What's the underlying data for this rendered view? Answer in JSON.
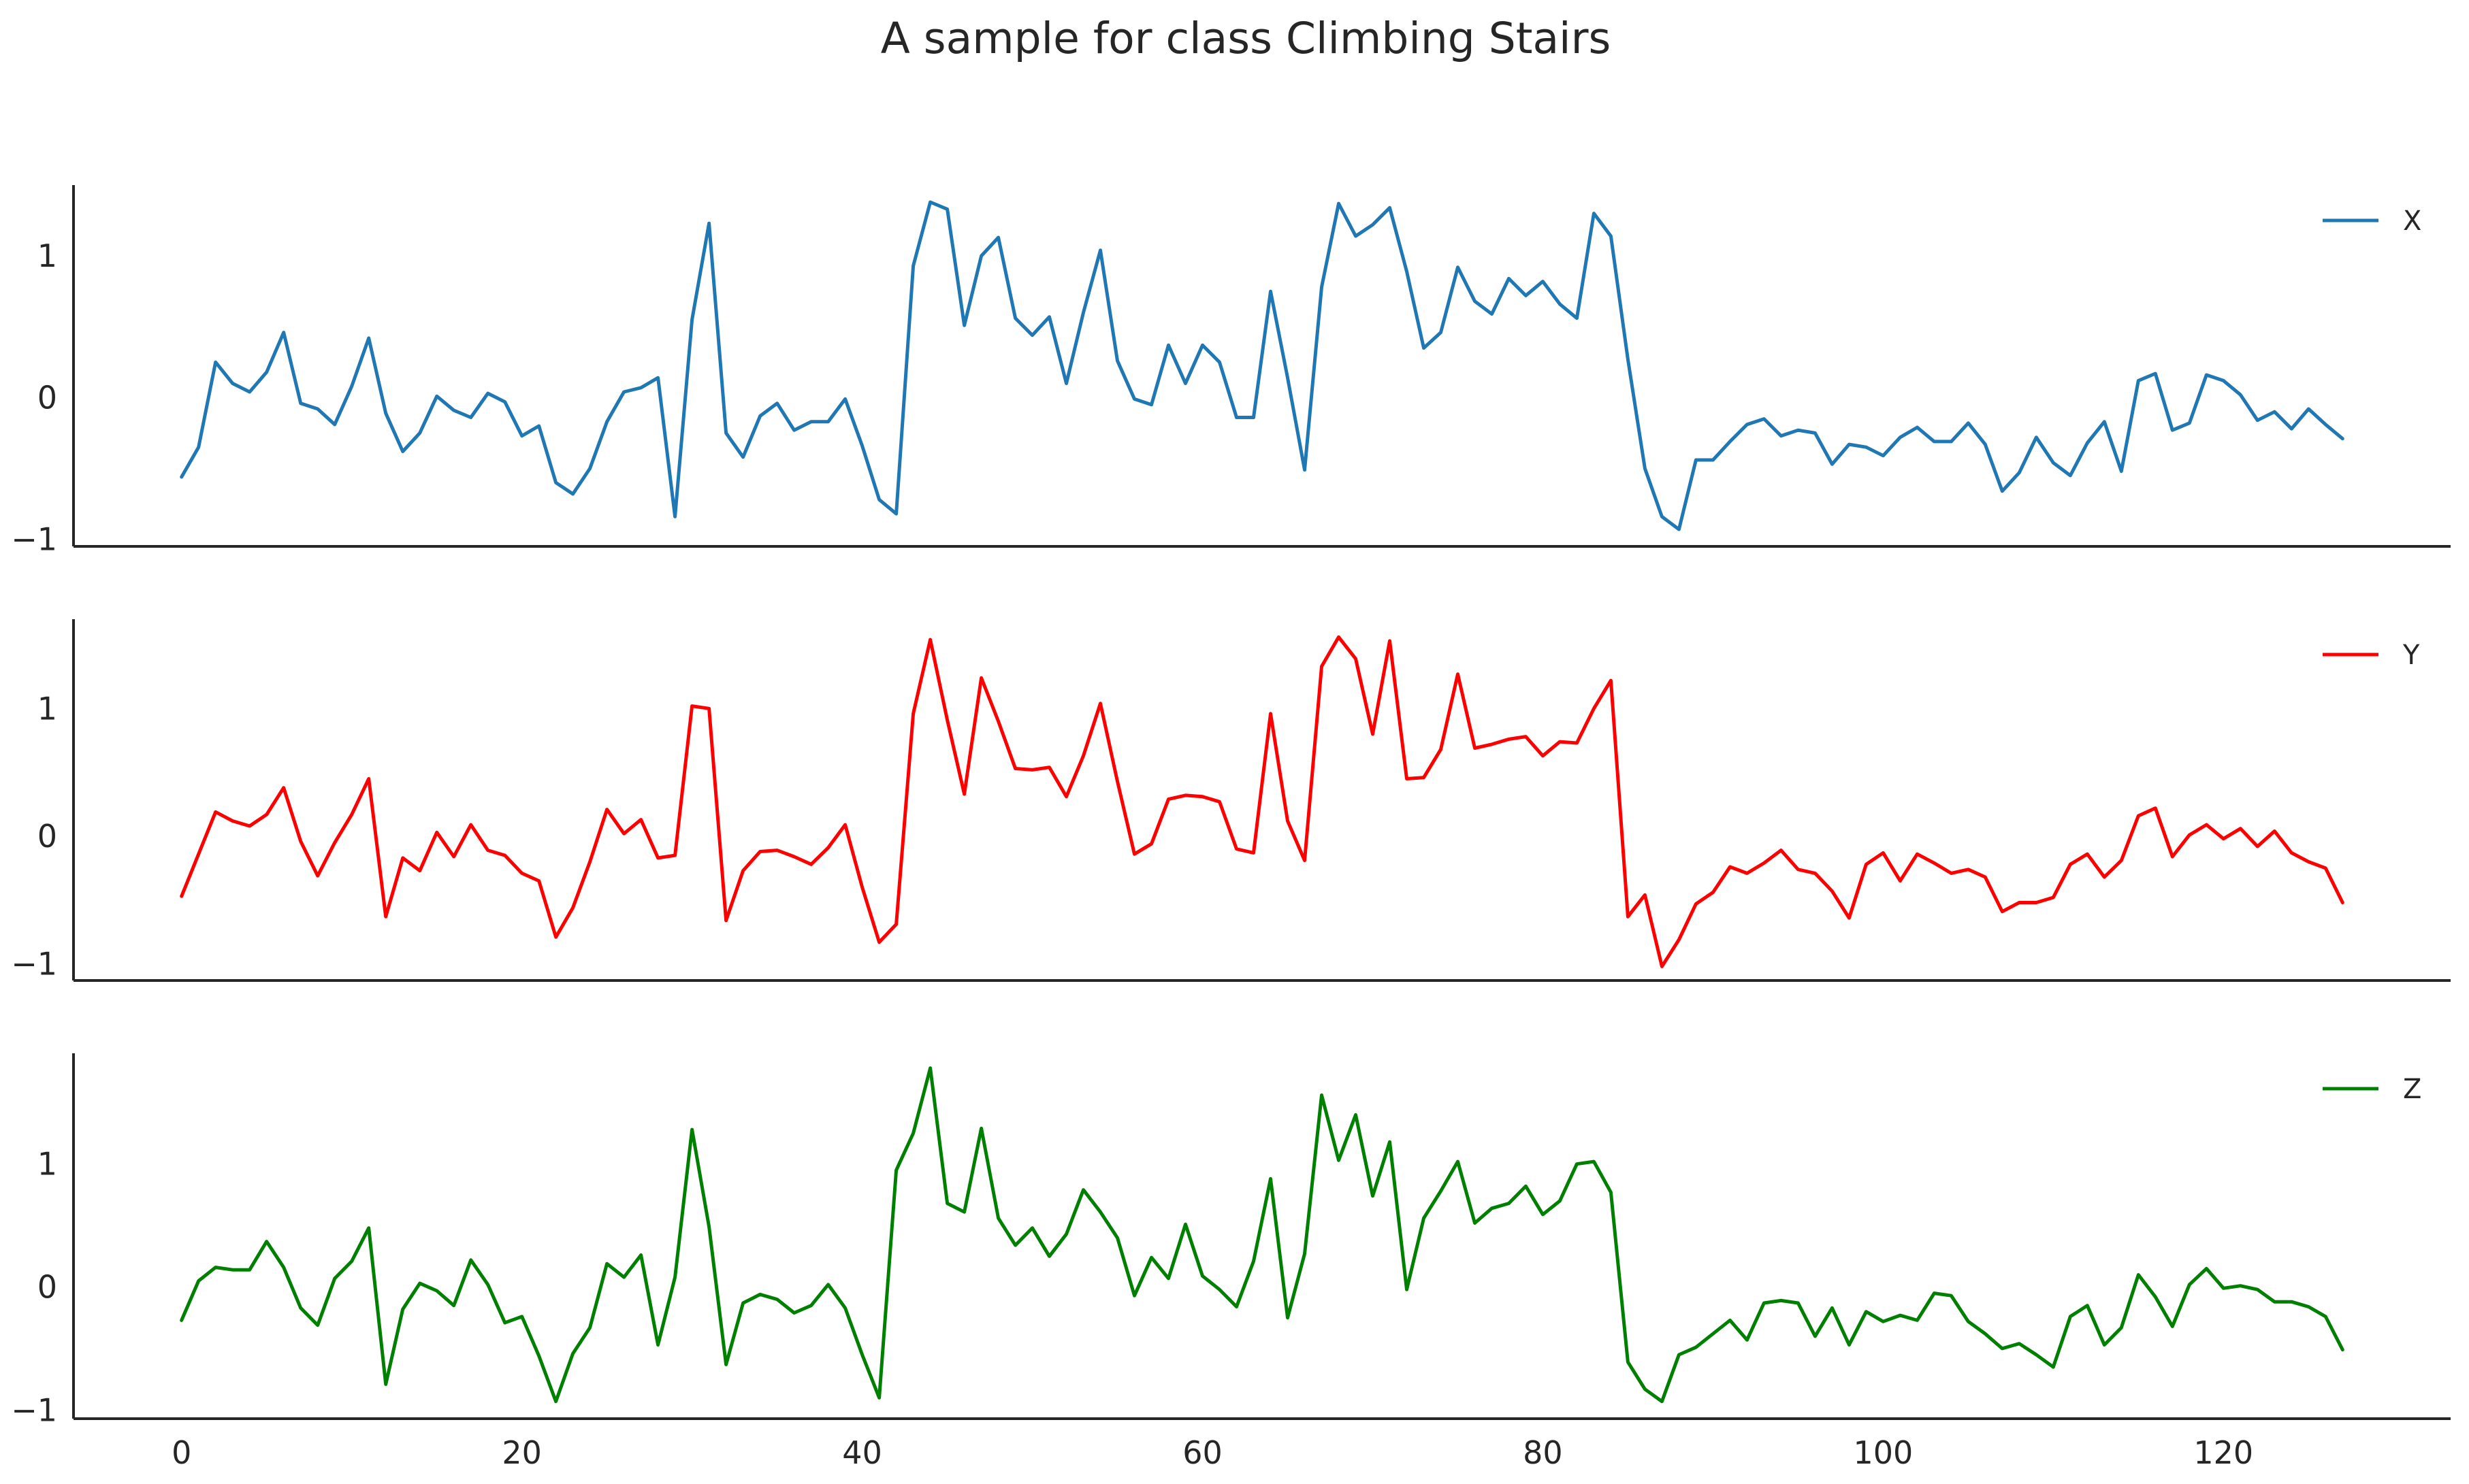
{
  "figure": {
    "title": "A sample for class Climbing Stairs"
  },
  "chart_data": [
    {
      "type": "line",
      "title": "",
      "xlabel": "",
      "ylabel": "",
      "xlim": [
        -6.35,
        133.35
      ],
      "ylim": [
        -1.05,
        1.5
      ],
      "yticks": [
        -1,
        0,
        1
      ],
      "ytick_labels": [
        "−1",
        "0",
        "1"
      ],
      "xticks": [],
      "xtick_labels": [],
      "grid": false,
      "legend_position": "top-right",
      "series": [
        {
          "name": "X",
          "color": "#1f77b4",
          "x_start": 0,
          "values": [
            -0.56,
            -0.35,
            0.25,
            0.1,
            0.04,
            0.18,
            0.46,
            -0.04,
            -0.08,
            -0.19,
            0.08,
            0.42,
            -0.11,
            -0.38,
            -0.25,
            0.01,
            -0.09,
            -0.14,
            0.03,
            -0.03,
            -0.27,
            -0.2,
            -0.6,
            -0.68,
            -0.5,
            -0.17,
            0.04,
            0.07,
            0.14,
            -0.84,
            0.55,
            1.23,
            -0.25,
            -0.42,
            -0.13,
            -0.04,
            -0.23,
            -0.17,
            -0.17,
            -0.01,
            -0.34,
            -0.72,
            -0.82,
            0.93,
            1.38,
            1.33,
            0.51,
            1.0,
            1.13,
            0.56,
            0.44,
            0.57,
            0.1,
            0.6,
            1.04,
            0.26,
            -0.01,
            -0.05,
            0.37,
            0.1,
            0.37,
            0.25,
            -0.14,
            -0.14,
            0.75,
            0.14,
            -0.51,
            0.78,
            1.37,
            1.14,
            1.22,
            1.34,
            0.89,
            0.35,
            0.46,
            0.92,
            0.68,
            0.59,
            0.84,
            0.72,
            0.82,
            0.66,
            0.56,
            1.3,
            1.14,
            0.27,
            -0.5,
            -0.84,
            -0.93,
            -0.44,
            -0.44,
            -0.31,
            -0.19,
            -0.15,
            -0.27,
            -0.23,
            -0.25,
            -0.47,
            -0.33,
            -0.35,
            -0.41,
            -0.28,
            -0.21,
            -0.31,
            -0.31,
            -0.18,
            -0.33,
            -0.66,
            -0.53,
            -0.28,
            -0.46,
            -0.55,
            -0.32,
            -0.17,
            -0.52,
            0.12,
            0.17,
            -0.23,
            -0.18,
            0.16,
            0.12,
            0.02,
            -0.16,
            -0.1,
            -0.22,
            -0.08,
            -0.19,
            -0.29
          ]
        }
      ]
    },
    {
      "type": "line",
      "title": "",
      "xlabel": "",
      "ylabel": "",
      "xlim": [
        -6.35,
        133.35
      ],
      "ylim": [
        -1.13,
        1.7
      ],
      "yticks": [
        -1,
        0,
        1
      ],
      "ytick_labels": [
        "−1",
        "0",
        "1"
      ],
      "xticks": [],
      "xtick_labels": [],
      "grid": false,
      "legend_position": "top-right",
      "series": [
        {
          "name": "Y",
          "color": "#ff0000",
          "x_start": 0,
          "values": [
            -0.47,
            -0.14,
            0.19,
            0.12,
            0.08,
            0.17,
            0.38,
            -0.04,
            -0.31,
            -0.05,
            0.17,
            0.45,
            -0.63,
            -0.17,
            -0.27,
            0.03,
            -0.16,
            0.09,
            -0.11,
            -0.15,
            -0.29,
            -0.35,
            -0.79,
            -0.56,
            -0.2,
            0.21,
            0.02,
            0.13,
            -0.17,
            -0.15,
            1.02,
            1.0,
            -0.66,
            -0.27,
            -0.12,
            -0.11,
            -0.16,
            -0.22,
            -0.09,
            0.09,
            -0.4,
            -0.83,
            -0.69,
            0.96,
            1.54,
            0.91,
            0.33,
            1.24,
            0.9,
            0.53,
            0.52,
            0.54,
            0.31,
            0.63,
            1.04,
            0.43,
            -0.14,
            -0.06,
            0.29,
            0.32,
            0.31,
            0.27,
            -0.1,
            -0.13,
            0.96,
            0.12,
            -0.19,
            1.33,
            1.56,
            1.39,
            0.8,
            1.53,
            0.45,
            0.46,
            0.68,
            1.27,
            0.69,
            0.72,
            0.76,
            0.78,
            0.63,
            0.74,
            0.73,
            1.0,
            1.22,
            -0.63,
            -0.46,
            -1.02,
            -0.81,
            -0.53,
            -0.44,
            -0.24,
            -0.29,
            -0.21,
            -0.11,
            -0.26,
            -0.29,
            -0.43,
            -0.64,
            -0.22,
            -0.13,
            -0.35,
            -0.14,
            -0.21,
            -0.29,
            -0.26,
            -0.32,
            -0.59,
            -0.52,
            -0.52,
            -0.48,
            -0.22,
            -0.14,
            -0.32,
            -0.19,
            0.16,
            0.22,
            -0.16,
            0.01,
            0.09,
            -0.02,
            0.06,
            -0.08,
            0.04,
            -0.13,
            -0.2,
            -0.25,
            -0.52
          ]
        }
      ]
    },
    {
      "type": "line",
      "title": "",
      "xlabel": "",
      "ylabel": "",
      "xlim": [
        -6.35,
        133.35
      ],
      "ylim": [
        -1.07,
        1.9
      ],
      "yticks": [
        -1,
        0,
        1
      ],
      "ytick_labels": [
        "−1",
        "0",
        "1"
      ],
      "xticks": [
        0,
        20,
        40,
        60,
        80,
        100,
        120
      ],
      "xtick_labels": [
        "0",
        "20",
        "40",
        "60",
        "80",
        "100",
        "120"
      ],
      "grid": false,
      "legend_position": "top-right",
      "series": [
        {
          "name": "Z",
          "color": "#008000",
          "x_start": 0,
          "values": [
            -0.27,
            0.05,
            0.16,
            0.14,
            0.14,
            0.37,
            0.16,
            -0.17,
            -0.31,
            0.07,
            0.21,
            0.48,
            -0.79,
            -0.18,
            0.03,
            -0.03,
            -0.15,
            0.22,
            0.02,
            -0.29,
            -0.24,
            -0.56,
            -0.93,
            -0.54,
            -0.33,
            0.19,
            0.08,
            0.26,
            -0.47,
            0.08,
            1.28,
            0.49,
            -0.63,
            -0.13,
            -0.06,
            -0.1,
            -0.21,
            -0.15,
            0.02,
            -0.17,
            -0.55,
            -0.9,
            0.95,
            1.25,
            1.78,
            0.68,
            0.61,
            1.29,
            0.56,
            0.34,
            0.48,
            0.25,
            0.43,
            0.79,
            0.61,
            0.4,
            -0.07,
            0.24,
            0.07,
            0.51,
            0.09,
            -0.02,
            -0.16,
            0.21,
            0.88,
            -0.25,
            0.27,
            1.56,
            1.03,
            1.4,
            0.74,
            1.18,
            -0.02,
            0.56,
            0.78,
            1.02,
            0.52,
            0.64,
            0.68,
            0.82,
            0.59,
            0.7,
            1.0,
            1.02,
            0.77,
            -0.61,
            -0.83,
            -0.93,
            -0.55,
            -0.49,
            -0.38,
            -0.27,
            -0.43,
            -0.13,
            -0.11,
            -0.13,
            -0.4,
            -0.17,
            -0.47,
            -0.2,
            -0.28,
            -0.23,
            -0.27,
            -0.05,
            -0.07,
            -0.28,
            -0.38,
            -0.5,
            -0.46,
            -0.55,
            -0.65,
            -0.24,
            -0.15,
            -0.47,
            -0.33,
            0.1,
            -0.08,
            -0.32,
            0.02,
            0.15,
            -0.01,
            0.01,
            -0.02,
            -0.12,
            -0.12,
            -0.16,
            -0.24,
            -0.51
          ]
        }
      ]
    }
  ]
}
